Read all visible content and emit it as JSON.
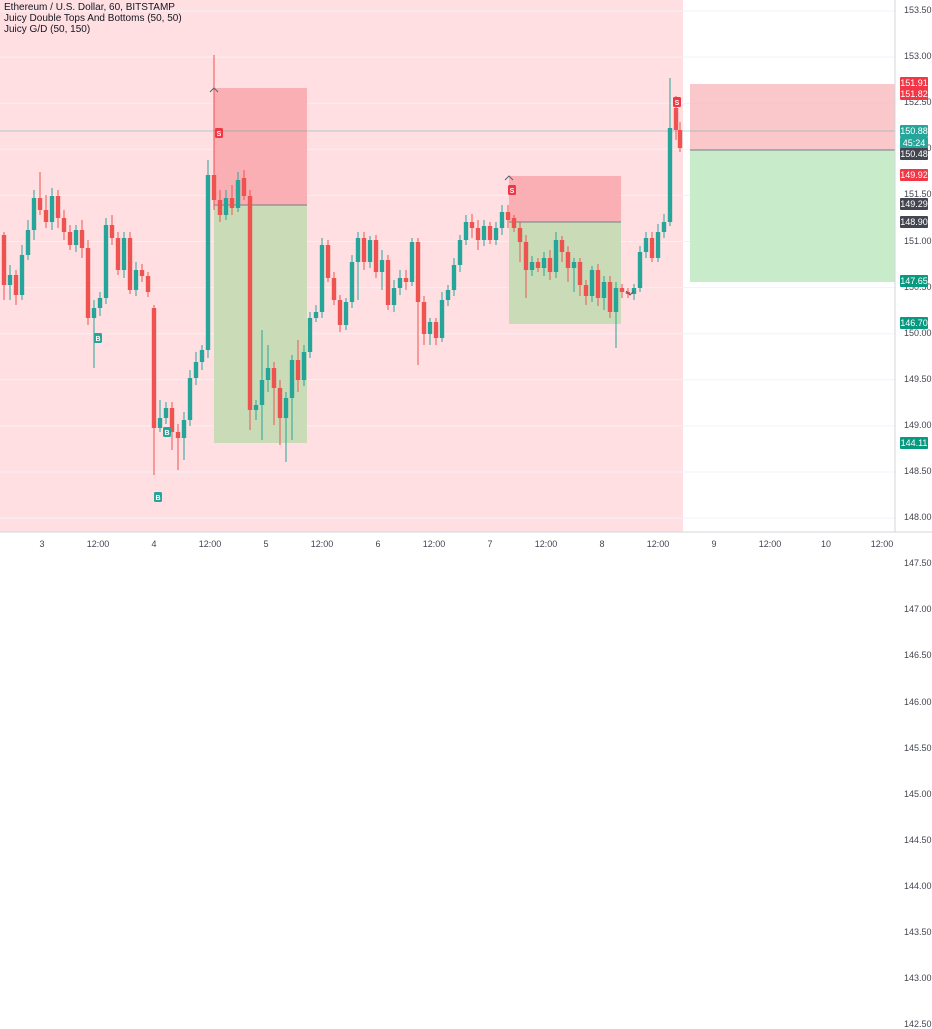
{
  "symbol": {
    "title": "Ethereum / U.S. Dollar, 60, BITSTAMP",
    "indicator1": "Juicy Double Tops And Bottoms (50, 50)",
    "indicator2": "Juicy G/D (50, 150)"
  },
  "price_axis": {
    "ticks": [
      "153.50",
      "153.00",
      "152.50",
      "152.00",
      "151.50",
      "151.00",
      "150.50",
      "150.00",
      "149.50",
      "149.00",
      "148.50",
      "148.00",
      "147.50",
      "147.00",
      "146.50",
      "146.00",
      "145.50",
      "145.00",
      "144.50",
      "144.00",
      "143.50",
      "143.00",
      "142.50"
    ],
    "tags": [
      {
        "text": "151.91",
        "color": "#f23645"
      },
      {
        "text": "151.82",
        "color": "#f23645"
      },
      {
        "text": "150.88",
        "color": "#26a69a"
      },
      {
        "text": "45:24",
        "color": "#26a69a"
      },
      {
        "text": "150.48",
        "color": "#434651"
      },
      {
        "text": "149.92",
        "color": "#f23645"
      },
      {
        "text": "149.29",
        "color": "#434651"
      },
      {
        "text": "148.90",
        "color": "#434651"
      },
      {
        "text": "147.65",
        "color": "#089981"
      },
      {
        "text": "146.70",
        "color": "#089981"
      },
      {
        "text": "144.11",
        "color": "#089981"
      }
    ]
  },
  "time_axis": [
    "3",
    "12:00",
    "4",
    "12:00",
    "5",
    "12:00",
    "6",
    "12:00",
    "7",
    "12:00",
    "8",
    "12:00",
    "9",
    "12:00",
    "10",
    "12:00"
  ],
  "markers": {
    "buy": "B",
    "sell": "S"
  },
  "colors": {
    "up": "#26a69a",
    "down": "#ef5350",
    "bg_tint": "#ffdfe2"
  }
}
